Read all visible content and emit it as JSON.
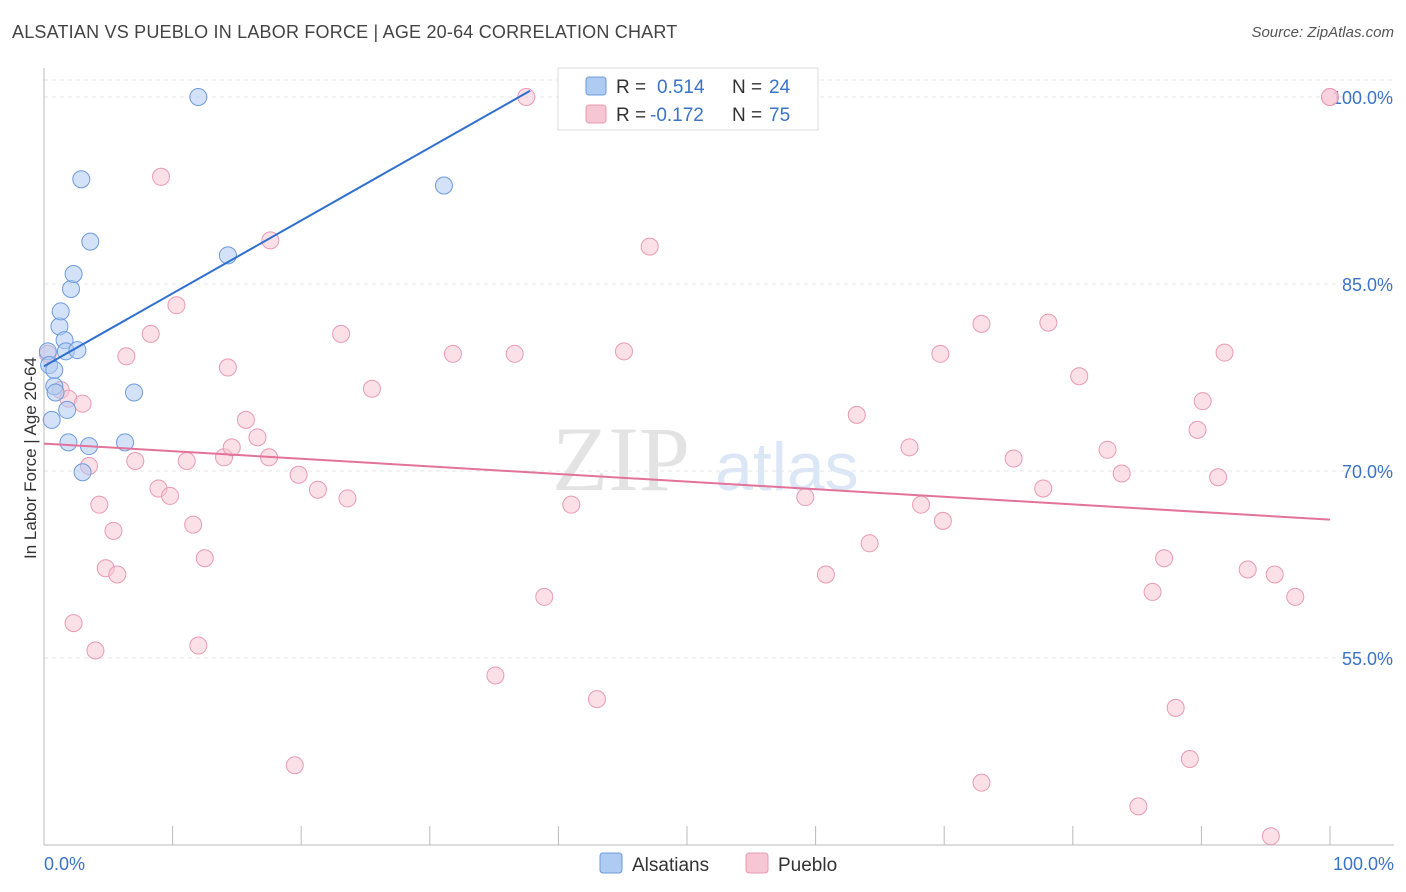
{
  "header": {
    "title": "ALSATIAN VS PUEBLO IN LABOR FORCE | AGE 20-64 CORRELATION CHART",
    "source": "Source: ZipAtlas.com"
  },
  "chart_data": {
    "type": "scatter",
    "title": "ALSATIAN VS PUEBLO IN LABOR FORCE | AGE 20-64 CORRELATION CHART",
    "ylabel": "In Labor Force | Age 20-64",
    "xlabel": "",
    "xlim": [
      0,
      100
    ],
    "ylim": [
      40,
      101.5
    ],
    "x_tick_labels": [
      "0.0%",
      "100.0%"
    ],
    "y_ticks": [
      55,
      70,
      85,
      100
    ],
    "y_tick_labels": [
      "55.0%",
      "70.0%",
      "85.0%",
      "100.0%"
    ],
    "grid": true,
    "watermark": {
      "bold": "ZIP",
      "light": "atlas"
    },
    "legend": {
      "r_label": "R =",
      "n_label": "N =",
      "rows": [
        {
          "name": "Alsatians",
          "r": "0.514",
          "n": "24",
          "color": "#aecbf2",
          "stroke": "#6d9bdc"
        },
        {
          "name": "Pueblo",
          "r": "-0.172",
          "n": "75",
          "color": "#f7c6d5",
          "stroke": "#e99ab4"
        }
      ]
    },
    "series": [
      {
        "name": "Alsatians",
        "color": "#aecbf2",
        "stroke": "#6d9bdc",
        "line_color": "#2f6fcf",
        "trend": {
          "x": [
            0,
            37.8
          ],
          "y": [
            78.4,
            100.5
          ]
        },
        "points": [
          {
            "x": 0.3,
            "y": 79.6
          },
          {
            "x": 0.4,
            "y": 78.5
          },
          {
            "x": 0.6,
            "y": 74.1
          },
          {
            "x": 0.8,
            "y": 78.1
          },
          {
            "x": 0.8,
            "y": 76.8
          },
          {
            "x": 0.9,
            "y": 76.3
          },
          {
            "x": 1.2,
            "y": 81.6
          },
          {
            "x": 1.3,
            "y": 82.8
          },
          {
            "x": 1.6,
            "y": 80.5
          },
          {
            "x": 1.7,
            "y": 79.6
          },
          {
            "x": 1.8,
            "y": 74.9
          },
          {
            "x": 1.9,
            "y": 72.3
          },
          {
            "x": 2.1,
            "y": 84.6
          },
          {
            "x": 2.3,
            "y": 85.8
          },
          {
            "x": 2.6,
            "y": 79.7
          },
          {
            "x": 2.9,
            "y": 93.4
          },
          {
            "x": 3.0,
            "y": 69.9
          },
          {
            "x": 3.5,
            "y": 72.0
          },
          {
            "x": 3.6,
            "y": 88.4
          },
          {
            "x": 6.3,
            "y": 72.3
          },
          {
            "x": 7.0,
            "y": 76.3
          },
          {
            "x": 12.0,
            "y": 100.0
          },
          {
            "x": 14.3,
            "y": 87.3
          },
          {
            "x": 31.1,
            "y": 92.9
          }
        ]
      },
      {
        "name": "Pueblo",
        "color": "#f7c6d5",
        "stroke": "#e99ab4",
        "line_color": "#e3739a",
        "trend": {
          "x": [
            0,
            100
          ],
          "y": [
            72.2,
            66.1
          ]
        },
        "points": [
          {
            "x": 0.3,
            "y": 79.4
          },
          {
            "x": 1.3,
            "y": 76.5
          },
          {
            "x": 1.9,
            "y": 75.8
          },
          {
            "x": 2.3,
            "y": 57.8
          },
          {
            "x": 3.0,
            "y": 75.4
          },
          {
            "x": 3.5,
            "y": 70.4
          },
          {
            "x": 4.0,
            "y": 55.6
          },
          {
            "x": 4.3,
            "y": 67.3
          },
          {
            "x": 4.8,
            "y": 62.2
          },
          {
            "x": 5.4,
            "y": 65.2
          },
          {
            "x": 5.7,
            "y": 61.7
          },
          {
            "x": 6.4,
            "y": 79.2
          },
          {
            "x": 7.1,
            "y": 70.8
          },
          {
            "x": 8.3,
            "y": 81.0
          },
          {
            "x": 8.9,
            "y": 68.6
          },
          {
            "x": 9.1,
            "y": 93.6
          },
          {
            "x": 9.8,
            "y": 68.0
          },
          {
            "x": 10.3,
            "y": 83.3
          },
          {
            "x": 11.1,
            "y": 70.8
          },
          {
            "x": 11.6,
            "y": 65.7
          },
          {
            "x": 12.0,
            "y": 56.0
          },
          {
            "x": 12.5,
            "y": 63.0
          },
          {
            "x": 14.0,
            "y": 71.1
          },
          {
            "x": 14.3,
            "y": 78.3
          },
          {
            "x": 14.6,
            "y": 71.9
          },
          {
            "x": 15.7,
            "y": 74.1
          },
          {
            "x": 16.6,
            "y": 72.7
          },
          {
            "x": 17.5,
            "y": 71.1
          },
          {
            "x": 17.6,
            "y": 88.5
          },
          {
            "x": 19.5,
            "y": 46.4
          },
          {
            "x": 19.8,
            "y": 69.7
          },
          {
            "x": 21.3,
            "y": 68.5
          },
          {
            "x": 23.1,
            "y": 81.0
          },
          {
            "x": 23.6,
            "y": 67.8
          },
          {
            "x": 25.5,
            "y": 76.6
          },
          {
            "x": 31.8,
            "y": 79.4
          },
          {
            "x": 35.1,
            "y": 53.6
          },
          {
            "x": 36.6,
            "y": 79.4
          },
          {
            "x": 37.5,
            "y": 100.0
          },
          {
            "x": 38.9,
            "y": 59.9
          },
          {
            "x": 41.0,
            "y": 67.3
          },
          {
            "x": 43.0,
            "y": 51.7
          },
          {
            "x": 45.1,
            "y": 79.6
          },
          {
            "x": 47.1,
            "y": 88.0
          },
          {
            "x": 59.2,
            "y": 67.9
          },
          {
            "x": 60.8,
            "y": 61.7
          },
          {
            "x": 63.2,
            "y": 74.5
          },
          {
            "x": 64.2,
            "y": 64.2
          },
          {
            "x": 67.3,
            "y": 71.9
          },
          {
            "x": 68.2,
            "y": 67.3
          },
          {
            "x": 69.7,
            "y": 79.4
          },
          {
            "x": 69.9,
            "y": 66.0
          },
          {
            "x": 72.9,
            "y": 81.8
          },
          {
            "x": 72.9,
            "y": 45.0
          },
          {
            "x": 75.4,
            "y": 71.0
          },
          {
            "x": 77.7,
            "y": 68.6
          },
          {
            "x": 78.1,
            "y": 81.9
          },
          {
            "x": 80.5,
            "y": 77.6
          },
          {
            "x": 82.7,
            "y": 71.7
          },
          {
            "x": 83.8,
            "y": 69.8
          },
          {
            "x": 85.1,
            "y": 43.1
          },
          {
            "x": 86.2,
            "y": 60.3
          },
          {
            "x": 87.1,
            "y": 63.0
          },
          {
            "x": 88.0,
            "y": 51.0
          },
          {
            "x": 89.1,
            "y": 46.9
          },
          {
            "x": 89.7,
            "y": 73.3
          },
          {
            "x": 90.1,
            "y": 75.6
          },
          {
            "x": 91.3,
            "y": 69.5
          },
          {
            "x": 91.8,
            "y": 79.5
          },
          {
            "x": 93.6,
            "y": 62.1
          },
          {
            "x": 95.4,
            "y": 40.7
          },
          {
            "x": 95.7,
            "y": 61.7
          },
          {
            "x": 97.3,
            "y": 59.9
          },
          {
            "x": 100.0,
            "y": 100.0
          },
          {
            "x": 100.0,
            "y": 100.0
          }
        ]
      }
    ]
  }
}
